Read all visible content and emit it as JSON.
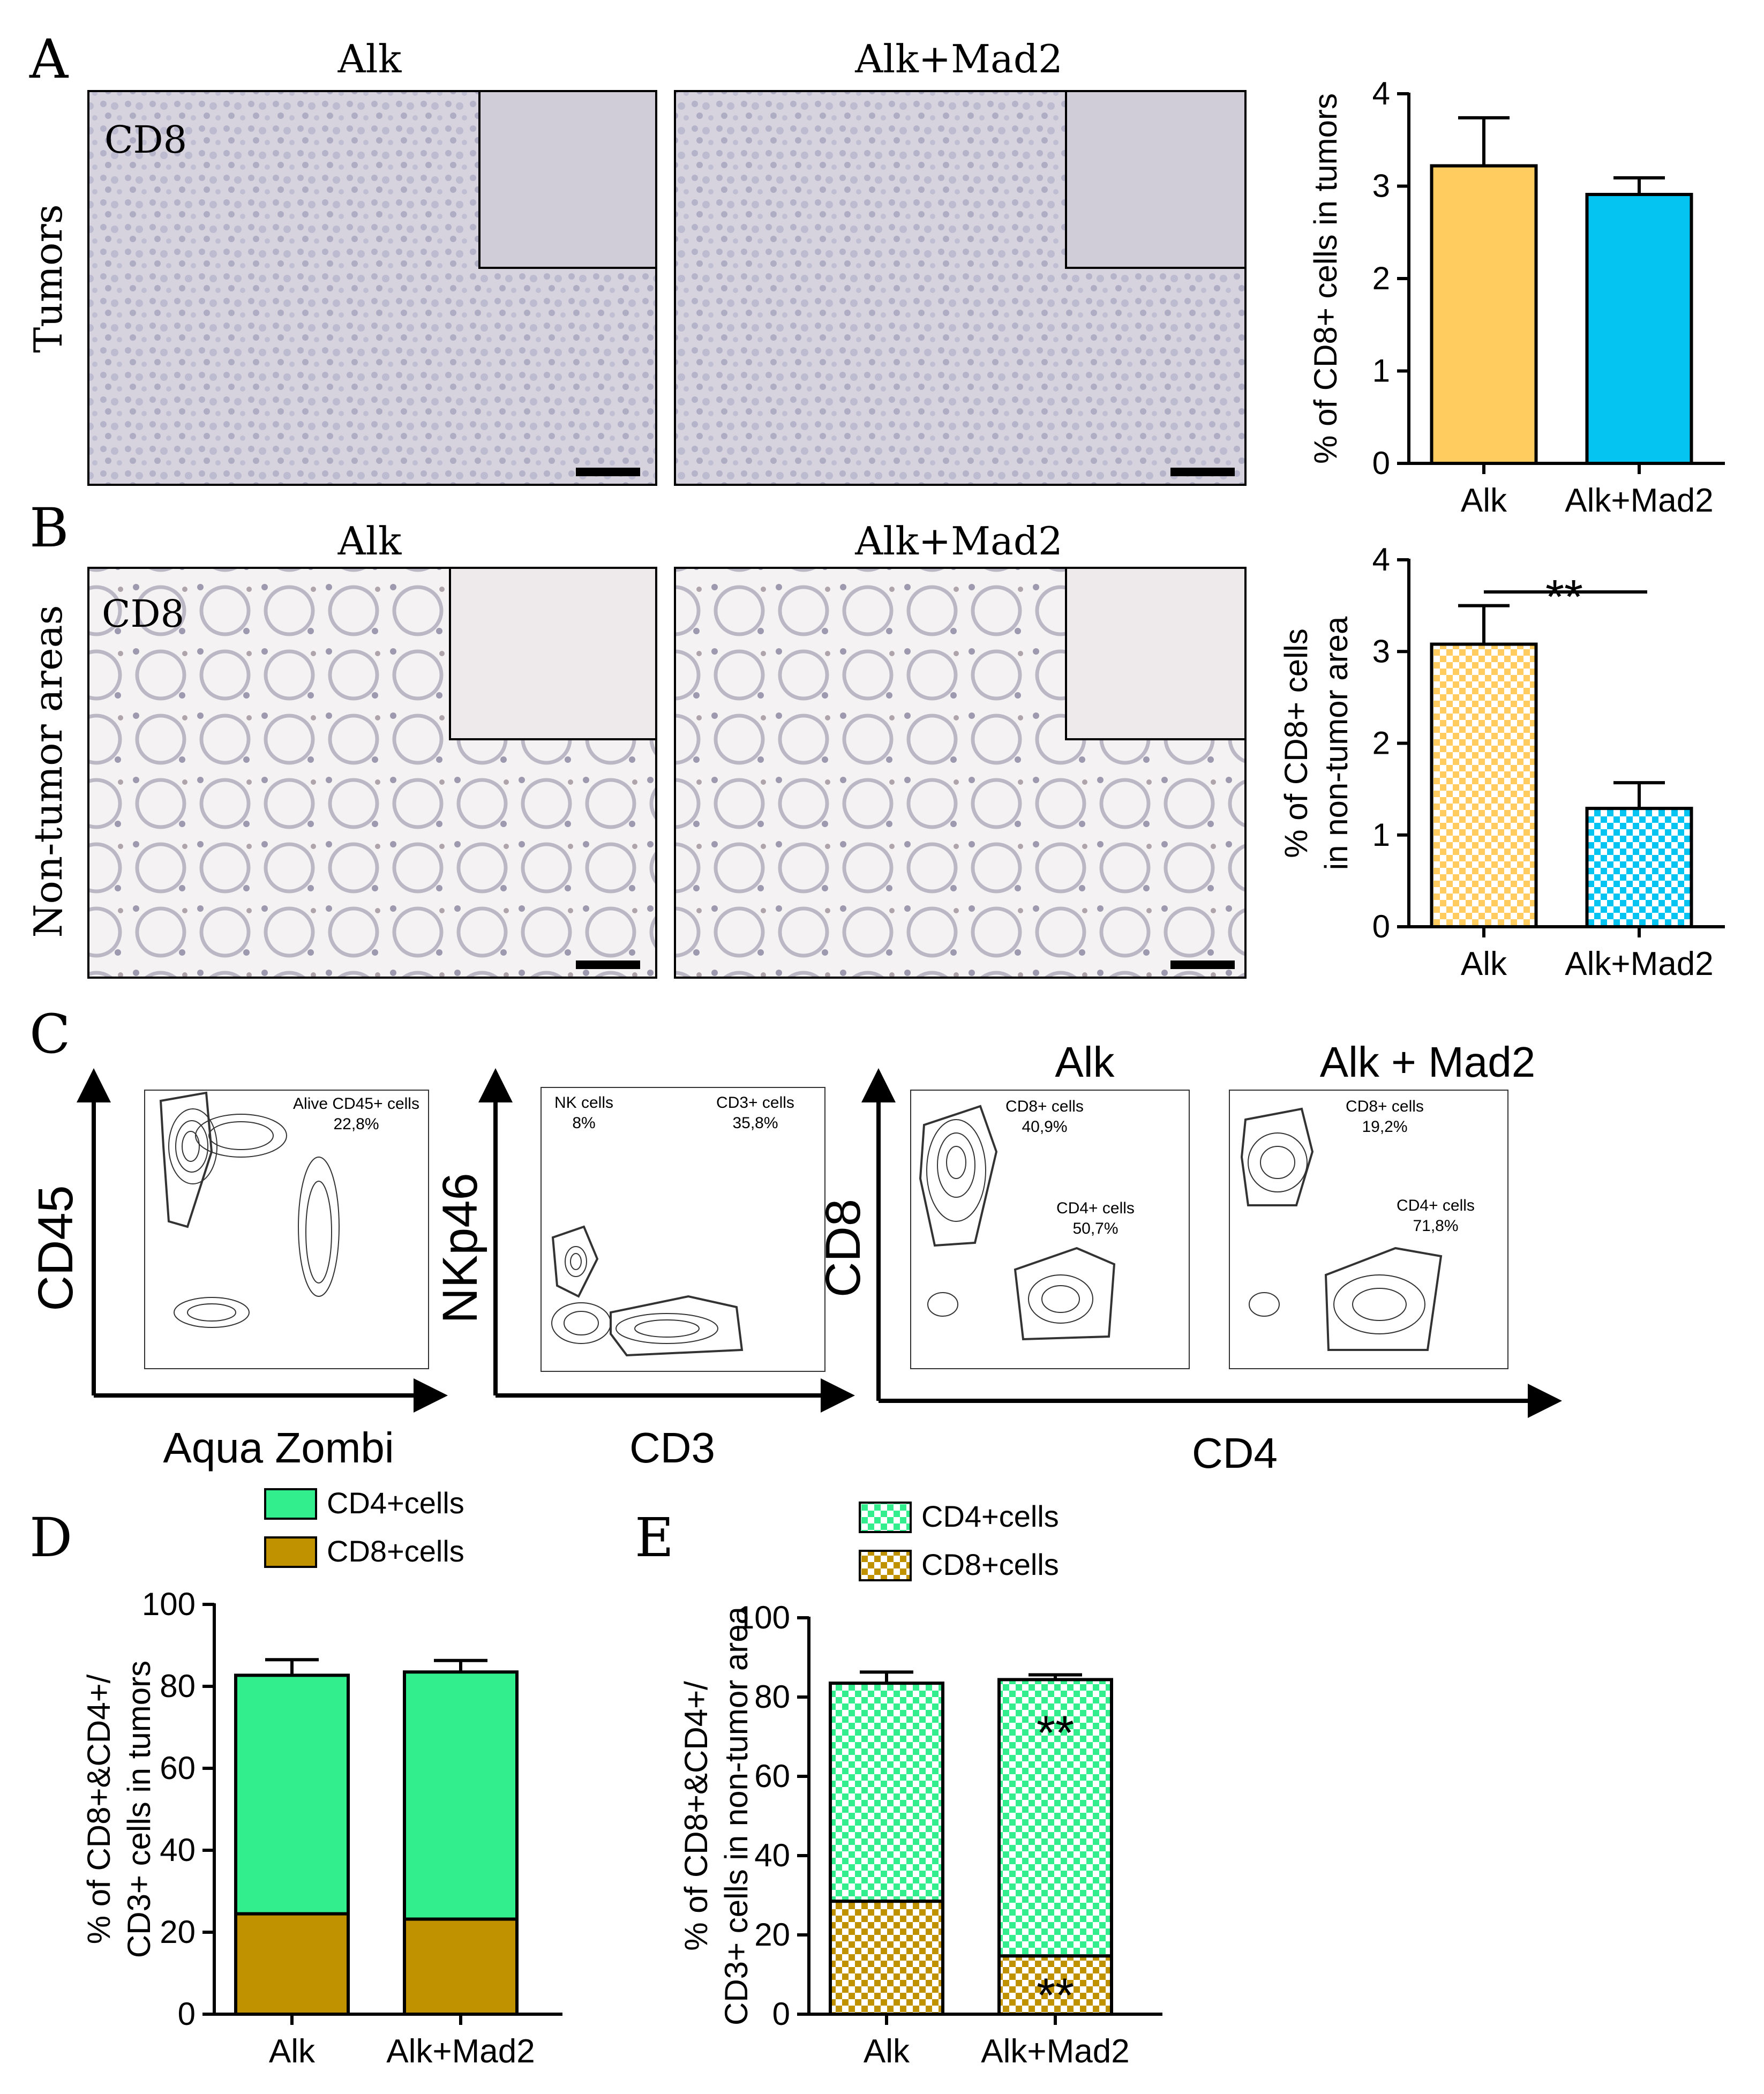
{
  "panel_letters": [
    "A",
    "B",
    "C",
    "D",
    "E"
  ],
  "panel_a": {
    "col_labels": [
      "Alk",
      "Alk+Mad2"
    ],
    "row_label": "Tumors",
    "stain_label": "CD8"
  },
  "panel_b": {
    "col_labels": [
      "Alk",
      "Alk+Mad2"
    ],
    "row_label": "Non-tumor areas",
    "stain_label": "CD8"
  },
  "panel_c": {
    "plot1": {
      "ylabel": "CD45",
      "xlabel": "Aqua Zombi",
      "gate_label": "Alive CD45+ cells",
      "gate_pct": "22,8%"
    },
    "plot2": {
      "ylabel": "NKp46",
      "xlabel": "CD3",
      "gate1_label": "NK cells",
      "gate1_pct": "8%",
      "gate2_label": "CD3+ cells",
      "gate2_pct": "35,8%"
    },
    "plot3": {
      "ylabel": "CD8",
      "xlabel": "CD4",
      "titles": [
        "Alk",
        "Alk + Mad2"
      ],
      "alk": {
        "cd8_label": "CD8+ cells",
        "cd8_pct": "40,9%",
        "cd4_label": "CD4+ cells",
        "cd4_pct": "50,7%"
      },
      "mad2": {
        "cd8_label": "CD8+ cells",
        "cd8_pct": "19,2%",
        "cd4_label": "CD4+ cells",
        "cd4_pct": "71,8%"
      }
    }
  },
  "chart_data": [
    {
      "id": "A",
      "type": "bar",
      "categories": [
        "Alk",
        "Alk+Mad2"
      ],
      "values": [
        3.22,
        2.91
      ],
      "errors": [
        0.52,
        0.18
      ],
      "colors": [
        "#FFCD5F",
        "#05C4F2"
      ],
      "patterned": false,
      "ylabel": "% of CD8+ cells in tumors",
      "ylim": [
        0,
        4
      ],
      "yticks": [
        0,
        1,
        2,
        3,
        4
      ],
      "significance": ""
    },
    {
      "id": "B",
      "type": "bar",
      "categories": [
        "Alk",
        "Alk+Mad2"
      ],
      "values": [
        3.08,
        1.29
      ],
      "errors": [
        0.42,
        0.28
      ],
      "colors": [
        "#FFCD5F",
        "#05C4F2"
      ],
      "patterned": true,
      "ylabel": [
        "% of CD8+ cells",
        "in non-tumor area"
      ],
      "ylim": [
        0,
        4
      ],
      "yticks": [
        0,
        1,
        2,
        3,
        4
      ],
      "significance": "**"
    },
    {
      "id": "D",
      "type": "bar",
      "stacked": true,
      "categories": [
        "Alk",
        "Alk+Mad2"
      ],
      "series": [
        {
          "name": "CD8+cells",
          "values": [
            24.5,
            23.2
          ],
          "errors": [
            1.5,
            2.8
          ],
          "color": "#C09200"
        },
        {
          "name": "CD4+cells",
          "values": [
            58.2,
            60.3
          ],
          "errors": [
            3.8,
            2.8
          ],
          "color": "#33EE8C"
        }
      ],
      "ylabel": [
        "% of CD8+&CD4+/",
        "CD3+ cells in tumors"
      ],
      "ylim": [
        0,
        100
      ],
      "yticks": [
        0,
        20,
        40,
        60,
        80,
        100
      ],
      "patterned": false,
      "annotations": []
    },
    {
      "id": "E",
      "type": "bar",
      "stacked": true,
      "categories": [
        "Alk",
        "Alk+Mad2"
      ],
      "series": [
        {
          "name": "CD8+cells",
          "values": [
            28.5,
            14.7
          ],
          "errors": [
            2.4,
            3.0
          ],
          "color": "#C09200"
        },
        {
          "name": "CD4+cells",
          "values": [
            55.0,
            69.7
          ],
          "errors": [
            2.8,
            1.2
          ],
          "color": "#33EE8C"
        }
      ],
      "ylabel": [
        "% of CD8+&CD4+/",
        "CD3+ cells in non-tumor area"
      ],
      "ylim": [
        0,
        100
      ],
      "yticks": [
        0,
        20,
        40,
        60,
        80,
        100
      ],
      "patterned": true,
      "annotations": [
        "**",
        "**"
      ]
    }
  ]
}
